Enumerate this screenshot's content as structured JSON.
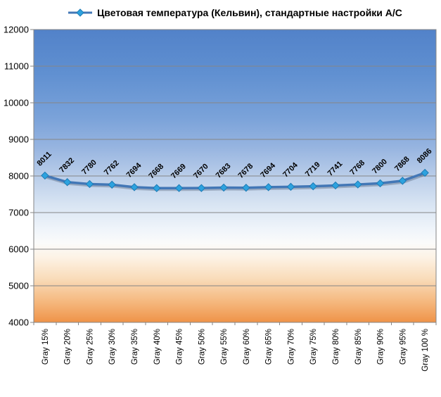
{
  "chart_data": {
    "type": "line",
    "legend_label": "Цветовая температура (Кельвин), стандартные настройки A/C",
    "legend_position": "top",
    "categories": [
      "Gray 15%",
      "Gray 20%",
      "Gray 25%",
      "Gray 30%",
      "Gray 35%",
      "Gray 40%",
      "Gray 45%",
      "Gray 50%",
      "Gray 55%",
      "Gray 60%",
      "Gray 65%",
      "Gray 70%",
      "Gray 75%",
      "Gray 80%",
      "Gray 85%",
      "Gray 90%",
      "Gray 95%",
      "Gray 100 %"
    ],
    "values": [
      8011,
      7832,
      7780,
      7762,
      7694,
      7668,
      7669,
      7670,
      7683,
      7678,
      7694,
      7704,
      7719,
      7741,
      7768,
      7800,
      7868,
      8086
    ],
    "ylim": [
      4000,
      12000
    ],
    "yticks": [
      4000,
      5000,
      6000,
      7000,
      8000,
      9000,
      10000,
      11000,
      12000
    ],
    "grid": true,
    "data_labels_shown": true,
    "colors": {
      "line": "#4377b6",
      "line_shadow": "rgba(70,85,110,0.35)",
      "marker_fill": "#2da2df",
      "marker_stroke": "#1e7bb5",
      "gridline": "#868686",
      "axis_text": "#000000",
      "data_label_text": "#000000"
    },
    "plot_gradient": [
      {
        "offset": "0%",
        "color": "#5282c9"
      },
      {
        "offset": "15%",
        "color": "#6090d1"
      },
      {
        "offset": "30%",
        "color": "#7aa2d9"
      },
      {
        "offset": "40%",
        "color": "#96b4e0"
      },
      {
        "offset": "50%",
        "color": "#b9cde9"
      },
      {
        "offset": "60%",
        "color": "#d9e5f3"
      },
      {
        "offset": "68%",
        "color": "#eff4fa"
      },
      {
        "offset": "73%",
        "color": "#fbfbfa"
      },
      {
        "offset": "78%",
        "color": "#fdf2e4"
      },
      {
        "offset": "85%",
        "color": "#f9dcba"
      },
      {
        "offset": "93%",
        "color": "#f5b87e"
      },
      {
        "offset": "100%",
        "color": "#ef9348"
      }
    ]
  }
}
